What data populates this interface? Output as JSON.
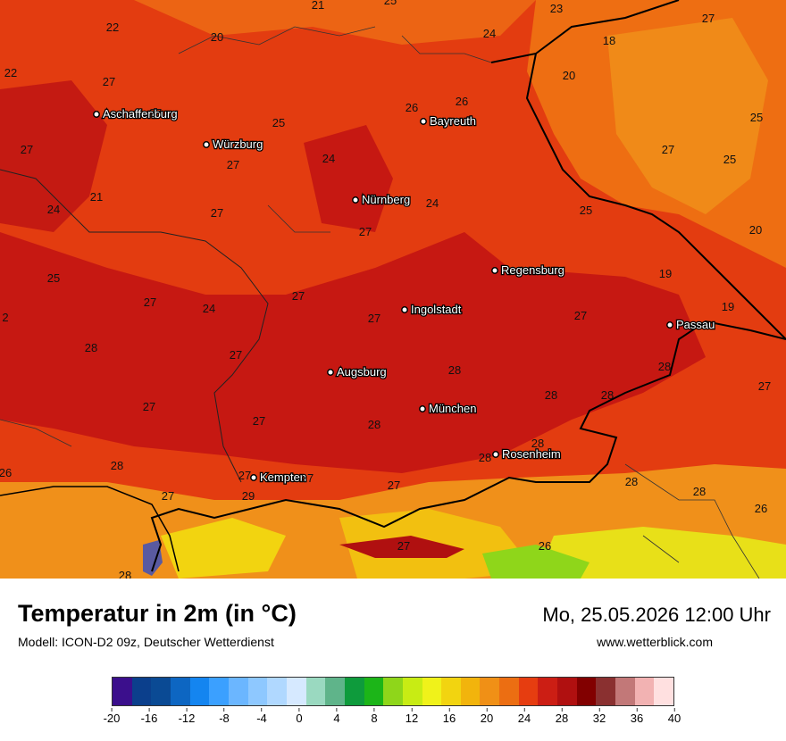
{
  "title": "Temperatur in 2m (in °C)",
  "model": "Modell: ICON-D2 09z, Deutscher Wetterdienst",
  "datetime": "Mo, 25.05.2026 12:00 Uhr",
  "website": "www.wetterblick.com",
  "cities": [
    {
      "name": "Aschaffenburg",
      "label_name": "aschaffenburg"
    },
    {
      "name": "Würzburg",
      "label_name": "wuerzburg"
    },
    {
      "name": "Bayreuth",
      "label_name": "bayreuth"
    },
    {
      "name": "Nürnberg",
      "label_name": "nuernberg"
    },
    {
      "name": "Regensburg",
      "label_name": "regensburg"
    },
    {
      "name": "Ingolstadt",
      "label_name": "ingolstadt"
    },
    {
      "name": "Passau",
      "label_name": "passau"
    },
    {
      "name": "Augsburg",
      "label_name": "augsburg"
    },
    {
      "name": "München",
      "label_name": "muenchen"
    },
    {
      "name": "Rosenheim",
      "label_name": "rosenheim"
    },
    {
      "name": "Kempten",
      "label_name": "kempten"
    }
  ],
  "temperature_labels": [
    "21",
    "25",
    "23",
    "27",
    "22",
    "20",
    "24",
    "18",
    "27",
    "22",
    "27",
    "26",
    "26",
    "20",
    "25",
    "25",
    "24",
    "27",
    "27",
    "27",
    "25",
    "21",
    "24",
    "24",
    "27",
    "25",
    "27",
    "20",
    "25",
    "27",
    "19",
    "27",
    "27",
    "24",
    "27",
    "28",
    "19",
    "2",
    "28",
    "27",
    "28",
    "27",
    "28",
    "28",
    "27",
    "28",
    "28",
    "28",
    "27",
    "27",
    "29",
    "28",
    "27",
    "28",
    "28",
    "27",
    "27",
    "26",
    "26",
    "27",
    "28",
    "26"
  ],
  "legend": {
    "colors": [
      "#3b0f8c",
      "#0b3f8c",
      "#0a4a94",
      "#0d66c2",
      "#1485f0",
      "#3ba0ff",
      "#6bb6ff",
      "#8ec8ff",
      "#b0d8ff",
      "#d6e9ff",
      "#9ad9c0",
      "#5fb48a",
      "#0e9b3c",
      "#1cb518",
      "#8fd61a",
      "#c8ec14",
      "#f0f21a",
      "#f2d410",
      "#f2b40c",
      "#f09016",
      "#ec6e12",
      "#e63d10",
      "#cc1e14",
      "#b01010",
      "#820000",
      "#8a3030",
      "#c27878",
      "#f2b2b2",
      "#ffe0e0"
    ],
    "ticks": [
      "-20",
      "-16",
      "-12",
      "-8",
      "-4",
      "0",
      "4",
      "8",
      "12",
      "16",
      "20",
      "24",
      "28",
      "32",
      "36",
      "40"
    ]
  }
}
